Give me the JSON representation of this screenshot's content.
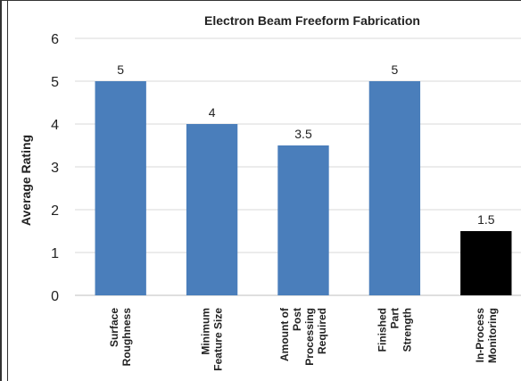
{
  "chart_data": {
    "type": "bar",
    "title": "Electron Beam Freeform Fabrication",
    "xlabel": "",
    "ylabel": "Average Rating",
    "ylim": [
      0,
      6
    ],
    "yticks": [
      0,
      1,
      2,
      3,
      4,
      5,
      6
    ],
    "grid": true,
    "categories": [
      "Surface Roughness",
      "Minimum Feature Size",
      "Amount of Post Processing Required",
      "Finished Part Strength",
      "In-Process Monitoring"
    ],
    "category_lines": [
      [
        "Surface",
        "Roughness"
      ],
      [
        "Minimum",
        "Feature Size"
      ],
      [
        "Amount of",
        "Post",
        "Processing",
        "Required"
      ],
      [
        "Finished",
        "Part",
        "Strength"
      ],
      [
        "In-Process",
        "Monitoring"
      ]
    ],
    "values": [
      5,
      4,
      3.5,
      5,
      1.5
    ],
    "data_labels": [
      "5",
      "4",
      "3.5",
      "5",
      "1.5"
    ],
    "bar_colors": [
      "#4a7ebb",
      "#4a7ebb",
      "#4a7ebb",
      "#4a7ebb",
      "#000000"
    ]
  },
  "colors": {
    "gridline": "#d9d9d9",
    "axis": "#bfbfbf",
    "text": "#222222"
  }
}
